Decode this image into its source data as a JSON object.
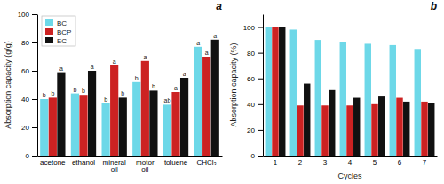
{
  "chart_data": [
    {
      "type": "bar",
      "title": "a",
      "categories": [
        "acetone",
        "ethanol",
        "mineral\noil",
        "motor\noil",
        "toluene",
        "CHCl₃"
      ],
      "series": [
        {
          "name": "BC",
          "color": "#6dd8e8",
          "values": [
            40,
            44,
            37,
            52,
            36,
            77
          ],
          "annotations": [
            "b",
            "b",
            "b",
            "b",
            "ab",
            "a"
          ]
        },
        {
          "name": "BCP",
          "color": "#cc2222",
          "values": [
            41,
            43,
            64,
            67,
            45,
            70
          ],
          "annotations": [
            "b",
            "b",
            "a",
            "a",
            "a",
            "a"
          ]
        },
        {
          "name": "EC",
          "color": "#111111",
          "values": [
            59,
            60,
            41,
            46,
            55,
            82
          ],
          "annotations": [
            "a",
            "a",
            "b",
            "b",
            "a",
            "a"
          ]
        }
      ],
      "y_label": "Absorption capacity (g/g)",
      "ylim": [
        0,
        100
      ],
      "yticks": [
        0,
        20,
        40,
        60,
        80,
        100
      ],
      "legend": "upper left"
    },
    {
      "type": "bar",
      "title": "b",
      "categories": [
        "1",
        "2",
        "3",
        "4",
        "5",
        "6",
        "7"
      ],
      "series": [
        {
          "color": "#6dd8e8",
          "values": [
            100,
            98,
            90,
            88,
            87,
            86,
            83
          ]
        },
        {
          "color": "#cc2222",
          "values": [
            100,
            39,
            39,
            39,
            40,
            45,
            42
          ]
        },
        {
          "color": "#111111",
          "values": [
            100,
            56,
            51,
            45,
            46,
            42,
            41
          ]
        }
      ],
      "x_label": "Cycles",
      "y_label": "Absorption capacity (%)",
      "ylim": [
        0,
        110
      ],
      "yticks": [
        0,
        20,
        40,
        60,
        80,
        100
      ]
    }
  ]
}
